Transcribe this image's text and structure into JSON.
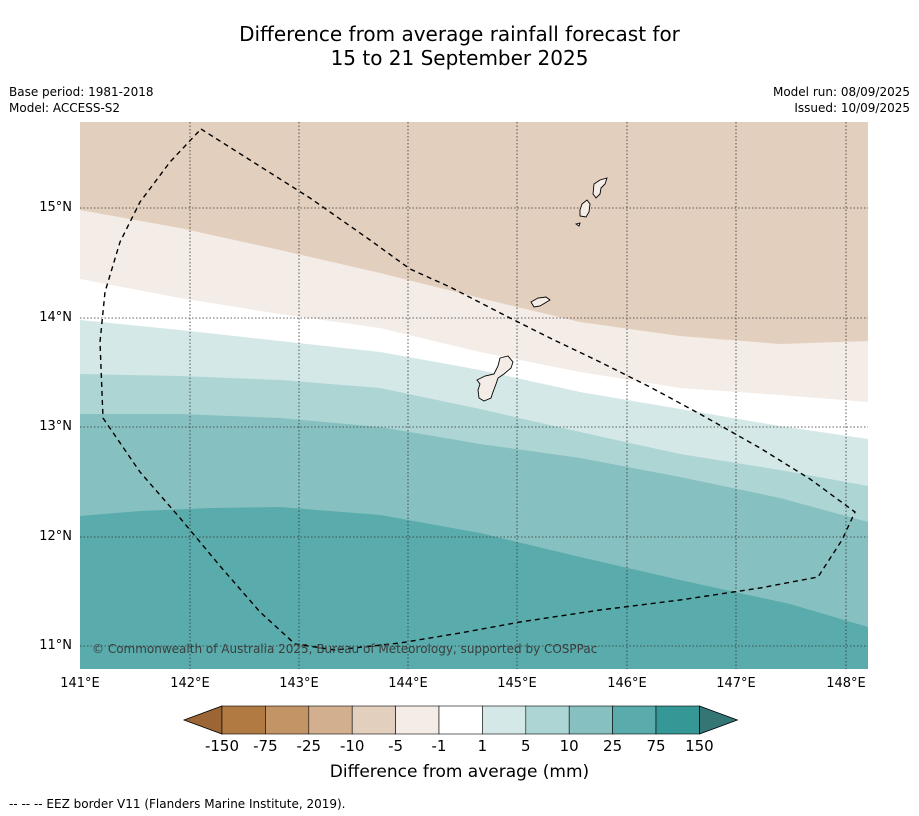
{
  "title_line1": "Difference from average rainfall forecast for",
  "title_line2": "15 to 21 September 2025",
  "meta": {
    "base_period": "Base period: 1981-2018",
    "model": "Model: ACCESS-S2",
    "model_run": "Model run: 08/09/2025",
    "issued": "Issued: 10/09/2025"
  },
  "map": {
    "lat_labels": [
      "15°N",
      "14°N",
      "13°N",
      "12°N",
      "11°N"
    ],
    "lon_labels": [
      "141°E",
      "142°E",
      "143°E",
      "144°E",
      "145°E",
      "146°E",
      "147°E",
      "148°E"
    ],
    "copyright": "© Commonwealth of Australia 2025, Bureau of Meteorology, supported by COSPPac"
  },
  "colorbar": {
    "labels": [
      "-150",
      "-75",
      "-25",
      "-10",
      "-5",
      "-1",
      "1",
      "5",
      "10",
      "25",
      "75",
      "150"
    ],
    "colors": [
      "#9c6634",
      "#b07a42",
      "#c39566",
      "#d2b08f",
      "#e3cfbe",
      "#f4ece6",
      "#ffffff",
      "#d4e8e7",
      "#acd5d4",
      "#87c0c0",
      "#5aabab",
      "#359796",
      "#347676"
    ],
    "title": "Difference from average (mm)"
  },
  "footnote": "--  --  -- EEZ border V11 (Flanders Marine Institute, 2019)."
}
